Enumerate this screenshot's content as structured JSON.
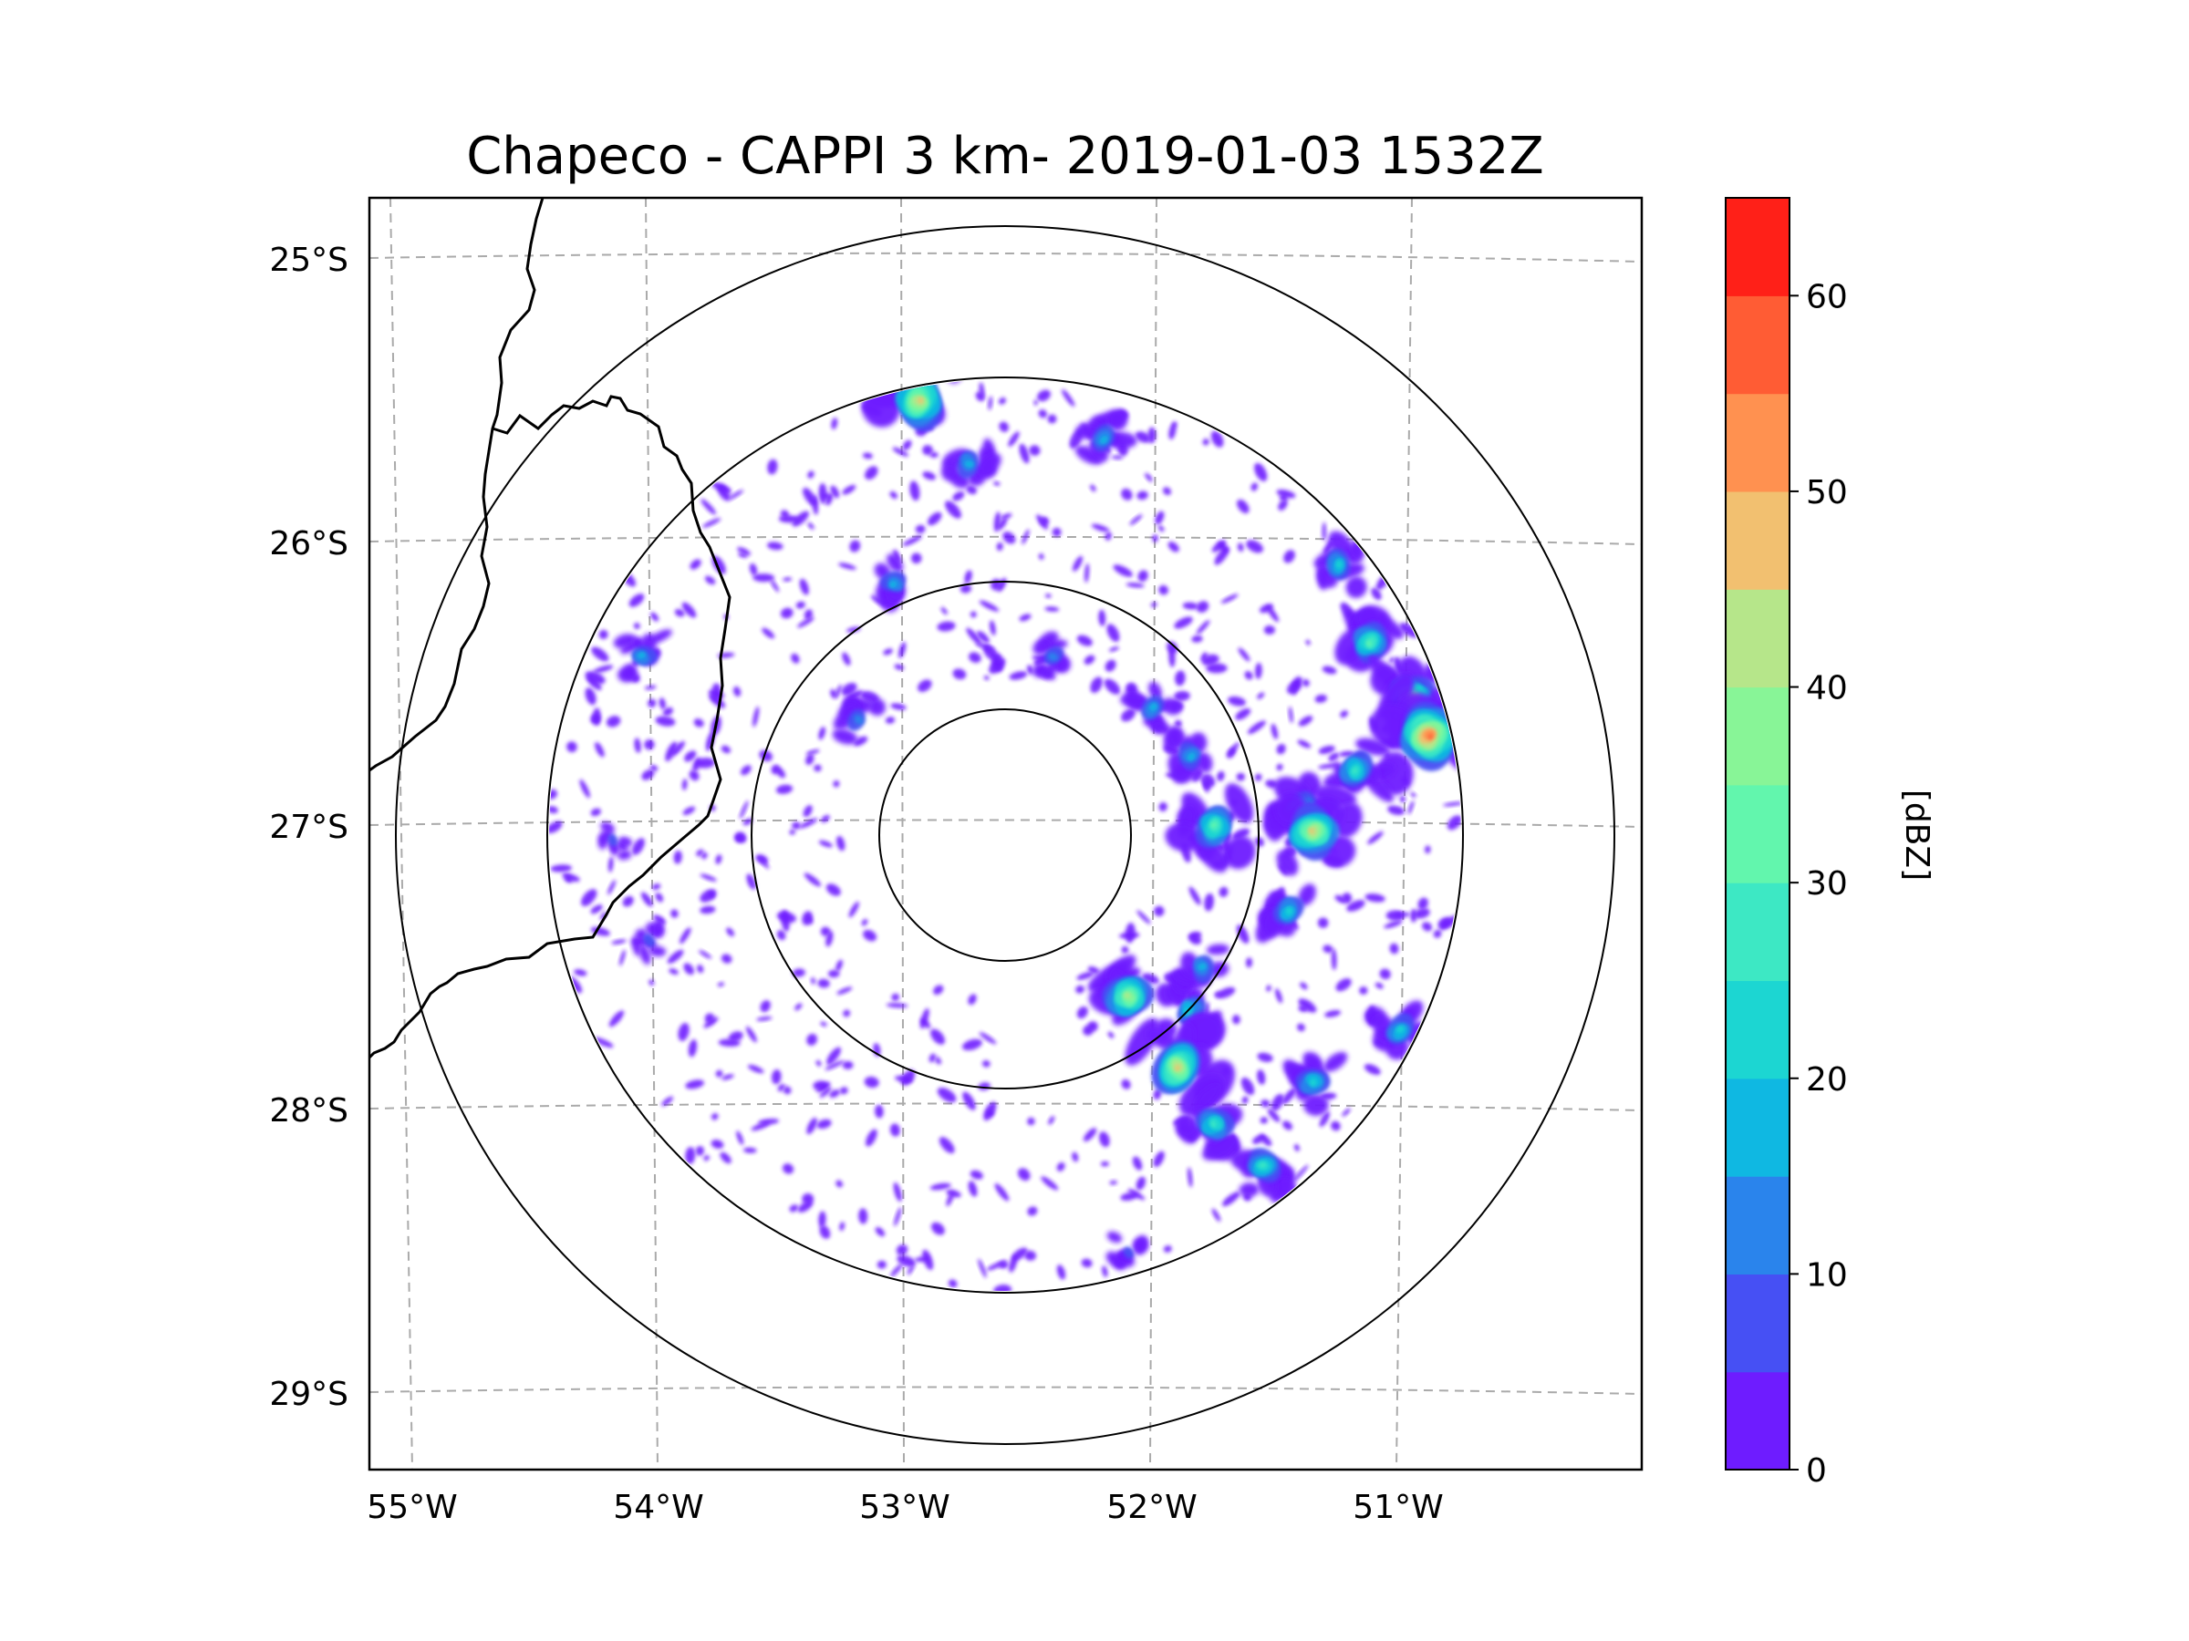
{
  "title": "Chapeco - CAPPI 3 km- 2019-01-03 1532Z",
  "map": {
    "lat_ticks": [
      "25°S",
      "26°S",
      "27°S",
      "28°S",
      "29°S"
    ],
    "lon_ticks": [
      "55°W",
      "54°W",
      "53°W",
      "52°W",
      "51°W"
    ],
    "gridlines": "dashed",
    "radar_center": {
      "lat": -27.03,
      "lon": -52.6
    },
    "range_rings": 4
  },
  "colorbar": {
    "label": "[dBZ]",
    "ticks": [
      "0",
      "10",
      "20",
      "30",
      "40",
      "50",
      "60"
    ],
    "min": 0,
    "max": 65,
    "levels": [
      0,
      5,
      10,
      15,
      20,
      25,
      30,
      35,
      40,
      45,
      50,
      55,
      60,
      65
    ],
    "colors": [
      "#6e1cff",
      "#4650f4",
      "#2a84ec",
      "#0fb8e2",
      "#1cd6d2",
      "#3de8c4",
      "#62f6ad",
      "#88f597",
      "#b6e68a",
      "#f2c070",
      "#ff9150",
      "#ff5c34",
      "#ff2018"
    ]
  },
  "echoes": [
    {
      "lat": -25.5,
      "lon": -52.95,
      "dbz": 48
    },
    {
      "lat": -25.72,
      "lon": -52.75,
      "dbz": 18
    },
    {
      "lat": -25.63,
      "lon": -52.2,
      "dbz": 18
    },
    {
      "lat": -26.14,
      "lon": -53.05,
      "dbz": 15
    },
    {
      "lat": -26.4,
      "lon": -54.07,
      "dbz": 15
    },
    {
      "lat": -26.62,
      "lon": -53.2,
      "dbz": 14
    },
    {
      "lat": -26.4,
      "lon": -52.4,
      "dbz": 12
    },
    {
      "lat": -26.58,
      "lon": -52.0,
      "dbz": 16
    },
    {
      "lat": -26.75,
      "lon": -51.85,
      "dbz": 18
    },
    {
      "lat": -27.0,
      "lon": -51.75,
      "dbz": 34
    },
    {
      "lat": -26.08,
      "lon": -51.25,
      "dbz": 20
    },
    {
      "lat": -26.35,
      "lon": -51.12,
      "dbz": 30
    },
    {
      "lat": -26.55,
      "lon": -50.95,
      "dbz": 42
    },
    {
      "lat": -26.68,
      "lon": -50.88,
      "dbz": 58
    },
    {
      "lat": -26.8,
      "lon": -51.18,
      "dbz": 28
    },
    {
      "lat": -26.95,
      "lon": -51.4,
      "dbz": 30
    },
    {
      "lat": -27.02,
      "lon": -51.35,
      "dbz": 45
    },
    {
      "lat": -27.3,
      "lon": -51.45,
      "dbz": 22
    },
    {
      "lat": -27.6,
      "lon": -52.1,
      "dbz": 40
    },
    {
      "lat": -27.65,
      "lon": -51.85,
      "dbz": 22
    },
    {
      "lat": -27.85,
      "lon": -51.9,
      "dbz": 46
    },
    {
      "lat": -28.05,
      "lon": -51.75,
      "dbz": 28
    },
    {
      "lat": -28.2,
      "lon": -51.55,
      "dbz": 26
    },
    {
      "lat": -27.9,
      "lon": -51.35,
      "dbz": 24
    },
    {
      "lat": -27.72,
      "lon": -51.0,
      "dbz": 22
    },
    {
      "lat": -27.5,
      "lon": -51.8,
      "dbz": 18
    },
    {
      "lat": -27.05,
      "lon": -54.2,
      "dbz": 5
    },
    {
      "lat": -27.4,
      "lon": -54.05,
      "dbz": 8
    },
    {
      "lat": -28.5,
      "lon": -52.1,
      "dbz": 5
    }
  ]
}
